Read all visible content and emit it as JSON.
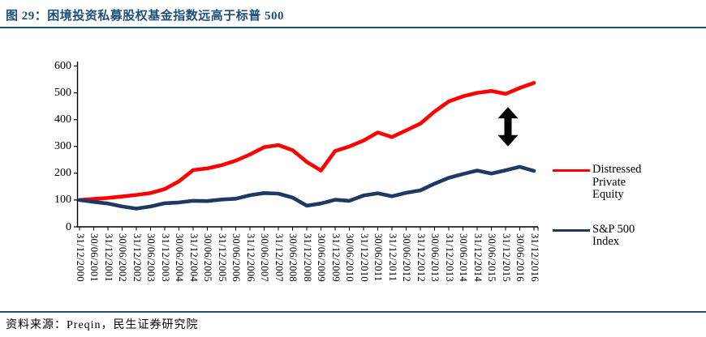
{
  "header": {
    "title": "图 29：困境投资私募股权基金指数远高于标普 500"
  },
  "footer": {
    "source": "资料来源：Preqin，民生证券研究院"
  },
  "colors": {
    "accent_blue": "#1F4E79",
    "red_line": "#FF0000",
    "navy_line": "#1F3864",
    "axis": "#000000",
    "annotation_arrow": "#000000"
  },
  "chart_data": {
    "type": "line",
    "title": "图 29：困境投资私募股权基金指数远高于标普 500",
    "xlabel": "",
    "ylabel": "",
    "ylim": [
      0,
      600
    ],
    "yticks": [
      0,
      100,
      200,
      300,
      400,
      500,
      600
    ],
    "grid": false,
    "legend_position": "right",
    "x_labels": [
      "31/12/2000",
      "30/06/2001",
      "31/12/2001",
      "30/06/2002",
      "31/12/2002",
      "30/06/2003",
      "31/12/2003",
      "30/06/2004",
      "31/12/2004",
      "30/06/2005",
      "31/12/2005",
      "30/06/2006",
      "31/12/2006",
      "30/06/2007",
      "31/12/2007",
      "30/06/2008",
      "31/12/2008",
      "30/06/2009",
      "31/12/2009",
      "30/06/2010",
      "31/12/2010",
      "30/06/2011",
      "31/12/2011",
      "30/06/2012",
      "31/12/2012",
      "30/06/2013",
      "31/12/2013",
      "30/06/2014",
      "31/12/2014",
      "30/06/2015",
      "31/12/2015",
      "30/06/2016",
      "31/12/2016"
    ],
    "series": [
      {
        "name": "Distressed Private Equity",
        "color": "#FF0000",
        "values": [
          100,
          104,
          108,
          113,
          119,
          126,
          141,
          170,
          212,
          218,
          230,
          247,
          270,
          297,
          305,
          286,
          242,
          210,
          283,
          300,
          322,
          352,
          335,
          360,
          385,
          430,
          468,
          487,
          500,
          507,
          496,
          518,
          537
        ]
      },
      {
        "name": "S&P 500 Index",
        "color": "#1F3864",
        "values": [
          100,
          93,
          87,
          76,
          68,
          76,
          88,
          91,
          97,
          96,
          102,
          105,
          118,
          126,
          124,
          109,
          79,
          87,
          101,
          97,
          117,
          125,
          114,
          127,
          136,
          161,
          183,
          197,
          210,
          199,
          211,
          224,
          209
        ]
      }
    ],
    "annotation": {
      "shape": "double-headed-vertical-arrow",
      "color": "#000000",
      "x_index": 30,
      "value_top": 447,
      "value_bottom": 300
    }
  }
}
